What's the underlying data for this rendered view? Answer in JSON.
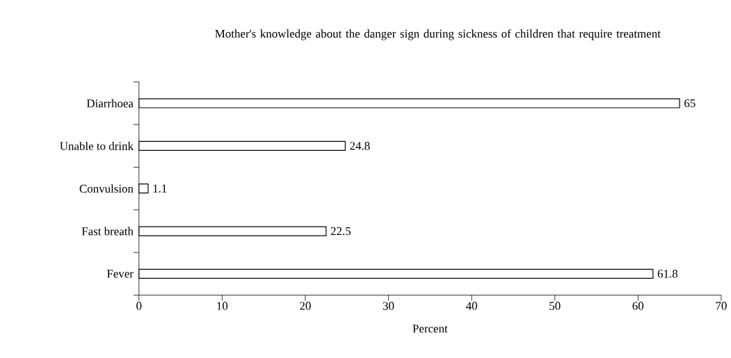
{
  "chart_data": {
    "type": "bar",
    "orientation": "horizontal",
    "title": "Mother's knowledge about the danger sign during sickness of children that require treatment",
    "xlabel": "Percent",
    "categories": [
      "Diarrhoea",
      "Unable to drink",
      "Convulsion",
      "Fast breath",
      "Fever"
    ],
    "values": [
      65,
      24.8,
      1.1,
      22.5,
      61.8
    ],
    "color": "#ffffff",
    "xlim": [
      0,
      70
    ],
    "xticks": [
      0,
      10,
      20,
      30,
      40,
      50,
      60,
      70
    ],
    "data_labels": true,
    "grid": false
  }
}
